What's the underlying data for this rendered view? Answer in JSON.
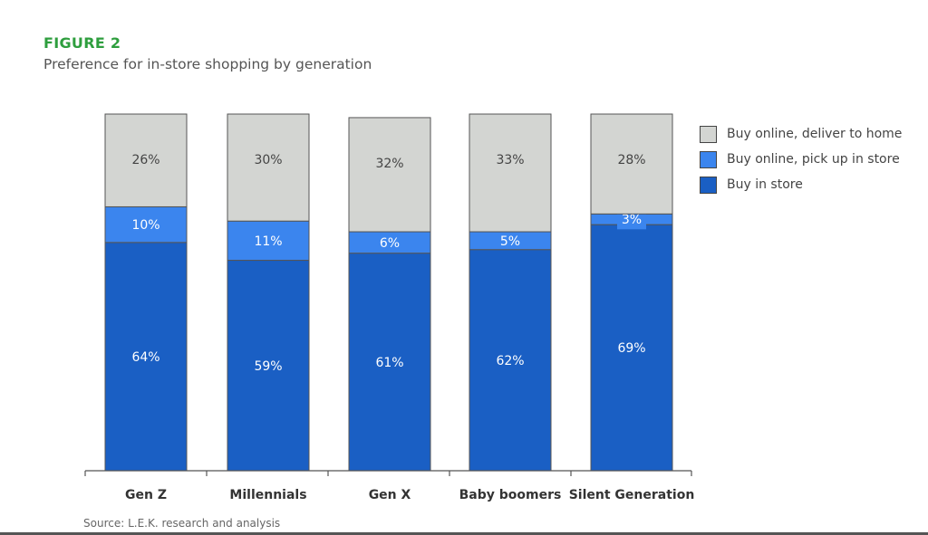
{
  "figure": {
    "label": "FIGURE 2",
    "subtitle": "Preference for in-store shopping by generation",
    "source": "Source: L.E.K. research and analysis"
  },
  "colors": {
    "deliver_home": "#d3d5d2",
    "pickup_store": "#3b85ee",
    "in_store": "#1a5fc4",
    "title_green": "#2e9e3e"
  },
  "legend": {
    "items": [
      {
        "label": "Buy online, deliver to home",
        "color": "#d3d5d2"
      },
      {
        "label": "Buy online, pick up in store",
        "color": "#3b85ee"
      },
      {
        "label": "Buy in store",
        "color": "#1a5fc4"
      }
    ]
  },
  "chart_data": {
    "type": "bar",
    "stacked": true,
    "categories": [
      "Gen Z",
      "Millennials",
      "Gen X",
      "Baby boomers",
      "Silent Generation"
    ],
    "series": [
      {
        "name": "Buy in store",
        "values": [
          64,
          59,
          61,
          62,
          69
        ],
        "labels": [
          "64%",
          "59%",
          "61%",
          "62%",
          "69%"
        ]
      },
      {
        "name": "Buy online, pick up in store",
        "values": [
          10,
          11,
          6,
          5,
          3
        ],
        "labels": [
          "10%",
          "11%",
          "6%",
          "5%",
          "3%"
        ]
      },
      {
        "name": "Buy online, deliver to home",
        "values": [
          26,
          30,
          32,
          33,
          28
        ],
        "labels": [
          "26%",
          "30%",
          "32%",
          "33%",
          "28%"
        ]
      }
    ],
    "ylim": [
      0,
      100
    ],
    "grid": false,
    "legend_position": "right"
  }
}
